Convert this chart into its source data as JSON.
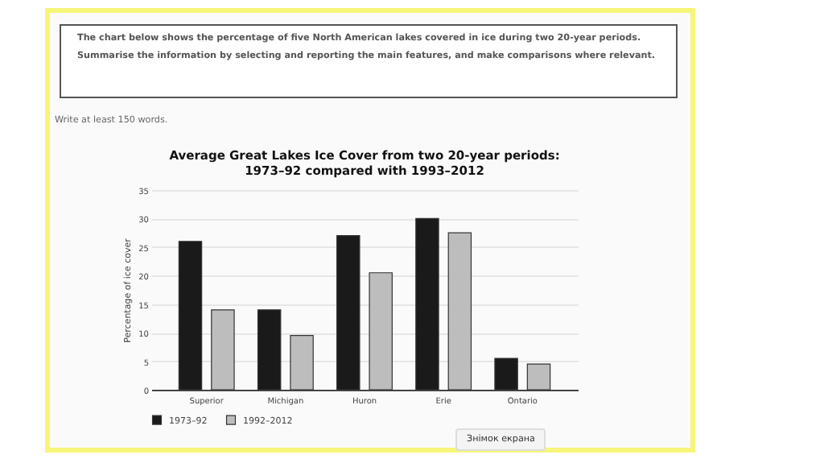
{
  "chart_data": {
    "type": "bar",
    "title": "Average Great Lakes Ice Cover from two 20-year periods:\n1973–92 compared with 1993–2012",
    "ylabel": "Percentage of ice cover",
    "categories": [
      "Superior",
      "Michigan",
      "Huron",
      "Erie",
      "Ontario"
    ],
    "series": [
      {
        "name": "1973–92",
        "color": "#1a1a1a",
        "values": [
          26,
          14,
          27,
          30,
          5.5
        ]
      },
      {
        "name": "1992–2012",
        "color": "#bdbdbd",
        "values": [
          14,
          9.5,
          20.5,
          27.5,
          4.5
        ]
      }
    ],
    "ylim": [
      0,
      35
    ],
    "yticks": [
      0,
      5,
      10,
      15,
      20,
      25,
      30,
      35
    ],
    "grid": "y",
    "legend": "bottom",
    "annotations": [
      "The chart below shows the percentage of five North American lakes covered in ice during two 20-year periods.",
      "Summarise the information by selecting and reporting the main features, and make comparisons where relevant.",
      "Write at least 150 words.",
      "Знімок екрана"
    ]
  }
}
